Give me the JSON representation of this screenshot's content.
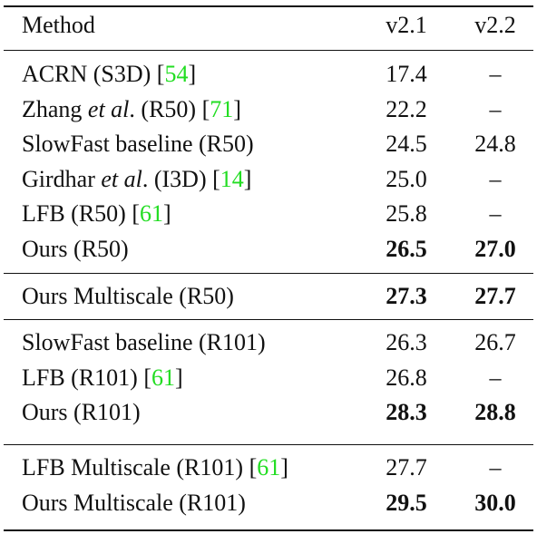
{
  "header": {
    "method": "Method",
    "v21": "v2.1",
    "v22": "v2.2"
  },
  "groups": [
    {
      "rows": [
        {
          "parts": [
            {
              "t": "ACRN (S3D) ["
            },
            {
              "t": "54",
              "cite": true
            },
            {
              "t": "]"
            }
          ],
          "v21": "17.4",
          "v22": "–",
          "bold21": false,
          "bold22": false
        },
        {
          "parts": [
            {
              "t": "Zhang "
            },
            {
              "t": "et al",
              "it": true
            },
            {
              "t": ". (R50) ["
            },
            {
              "t": "71",
              "cite": true
            },
            {
              "t": "]"
            }
          ],
          "v21": "22.2",
          "v22": "–",
          "bold21": false,
          "bold22": false
        },
        {
          "parts": [
            {
              "t": "SlowFast baseline (R50)"
            }
          ],
          "v21": "24.5",
          "v22": "24.8",
          "bold21": false,
          "bold22": false
        },
        {
          "parts": [
            {
              "t": "Girdhar "
            },
            {
              "t": "et al",
              "it": true
            },
            {
              "t": ". (I3D) ["
            },
            {
              "t": "14",
              "cite": true
            },
            {
              "t": "]"
            }
          ],
          "v21": "25.0",
          "v22": "–",
          "bold21": false,
          "bold22": false
        },
        {
          "parts": [
            {
              "t": "LFB (R50) ["
            },
            {
              "t": "61",
              "cite": true
            },
            {
              "t": "]"
            }
          ],
          "v21": "25.8",
          "v22": "–",
          "bold21": false,
          "bold22": false
        },
        {
          "parts": [
            {
              "t": "Ours (R50)"
            }
          ],
          "v21": "26.5",
          "v22": "27.0",
          "bold21": true,
          "bold22": true
        }
      ]
    },
    {
      "rows": [
        {
          "parts": [
            {
              "t": "Ours Multiscale (R50)"
            }
          ],
          "v21": "27.3",
          "v22": "27.7",
          "bold21": true,
          "bold22": true
        }
      ]
    },
    {
      "rows": [
        {
          "parts": [
            {
              "t": "SlowFast baseline (R101)"
            }
          ],
          "v21": "26.3",
          "v22": "26.7",
          "bold21": false,
          "bold22": false
        },
        {
          "parts": [
            {
              "t": "LFB (R101) ["
            },
            {
              "t": "61",
              "cite": true
            },
            {
              "t": "]"
            }
          ],
          "v21": "26.8",
          "v22": "–",
          "bold21": false,
          "bold22": false
        },
        {
          "parts": [
            {
              "t": "Ours (R101)"
            }
          ],
          "v21": "28.3",
          "v22": "28.8",
          "bold21": true,
          "bold22": true
        }
      ]
    },
    {
      "rows": [
        {
          "parts": [
            {
              "t": "LFB Multiscale (R101) ["
            },
            {
              "t": "61",
              "cite": true
            },
            {
              "t": "]"
            }
          ],
          "v21": "27.7",
          "v22": "–",
          "bold21": false,
          "bold22": false
        },
        {
          "parts": [
            {
              "t": "Ours Multiscale (R101)"
            }
          ],
          "v21": "29.5",
          "v22": "30.0",
          "bold21": true,
          "bold22": true
        }
      ]
    }
  ]
}
